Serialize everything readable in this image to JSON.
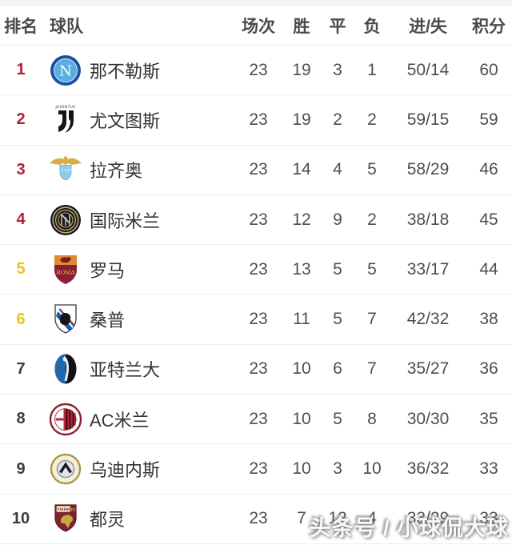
{
  "watermark": {
    "text": "头条号 / 小球侃大球"
  },
  "table": {
    "headers": {
      "rank": "排名",
      "team": "球队",
      "played": "场次",
      "win": "胜",
      "draw": "平",
      "loss": "负",
      "goals": "进/失",
      "points": "积分"
    },
    "rank_colors": {
      "champions": "#b31e3b",
      "europa": "#ecc41e",
      "none": "#3c3c3c"
    },
    "rows": [
      {
        "rank": "1",
        "zone": "champions",
        "logo": "napoli-logo",
        "team": "那不勒斯",
        "played": "23",
        "win": "19",
        "draw": "3",
        "loss": "1",
        "goals": "50/14",
        "points": "60"
      },
      {
        "rank": "2",
        "zone": "champions",
        "logo": "juventus-logo",
        "team": "尤文图斯",
        "played": "23",
        "win": "19",
        "draw": "2",
        "loss": "2",
        "goals": "59/15",
        "points": "59"
      },
      {
        "rank": "3",
        "zone": "champions",
        "logo": "lazio-logo",
        "team": "拉齐奥",
        "played": "23",
        "win": "14",
        "draw": "4",
        "loss": "5",
        "goals": "58/29",
        "points": "46"
      },
      {
        "rank": "4",
        "zone": "champions",
        "logo": "inter-logo",
        "team": "国际米兰",
        "played": "23",
        "win": "12",
        "draw": "9",
        "loss": "2",
        "goals": "38/18",
        "points": "45"
      },
      {
        "rank": "5",
        "zone": "europa",
        "logo": "roma-logo",
        "team": "罗马",
        "played": "23",
        "win": "13",
        "draw": "5",
        "loss": "5",
        "goals": "33/17",
        "points": "44"
      },
      {
        "rank": "6",
        "zone": "europa",
        "logo": "sampdoria-logo",
        "team": "桑普",
        "played": "23",
        "win": "11",
        "draw": "5",
        "loss": "7",
        "goals": "42/32",
        "points": "38"
      },
      {
        "rank": "7",
        "zone": "none",
        "logo": "atalanta-logo",
        "team": "亚特兰大",
        "played": "23",
        "win": "10",
        "draw": "6",
        "loss": "7",
        "goals": "35/27",
        "points": "36"
      },
      {
        "rank": "8",
        "zone": "none",
        "logo": "acmilan-logo",
        "team": "AC米兰",
        "played": "23",
        "win": "10",
        "draw": "5",
        "loss": "8",
        "goals": "30/30",
        "points": "35"
      },
      {
        "rank": "9",
        "zone": "none",
        "logo": "udinese-logo",
        "team": "乌迪内斯",
        "played": "23",
        "win": "10",
        "draw": "3",
        "loss": "10",
        "goals": "36/32",
        "points": "33"
      },
      {
        "rank": "10",
        "zone": "none",
        "logo": "torino-logo",
        "team": "都灵",
        "played": "23",
        "win": "7",
        "draw": "12",
        "loss": "4",
        "goals": "33/29",
        "points": "33"
      }
    ]
  }
}
